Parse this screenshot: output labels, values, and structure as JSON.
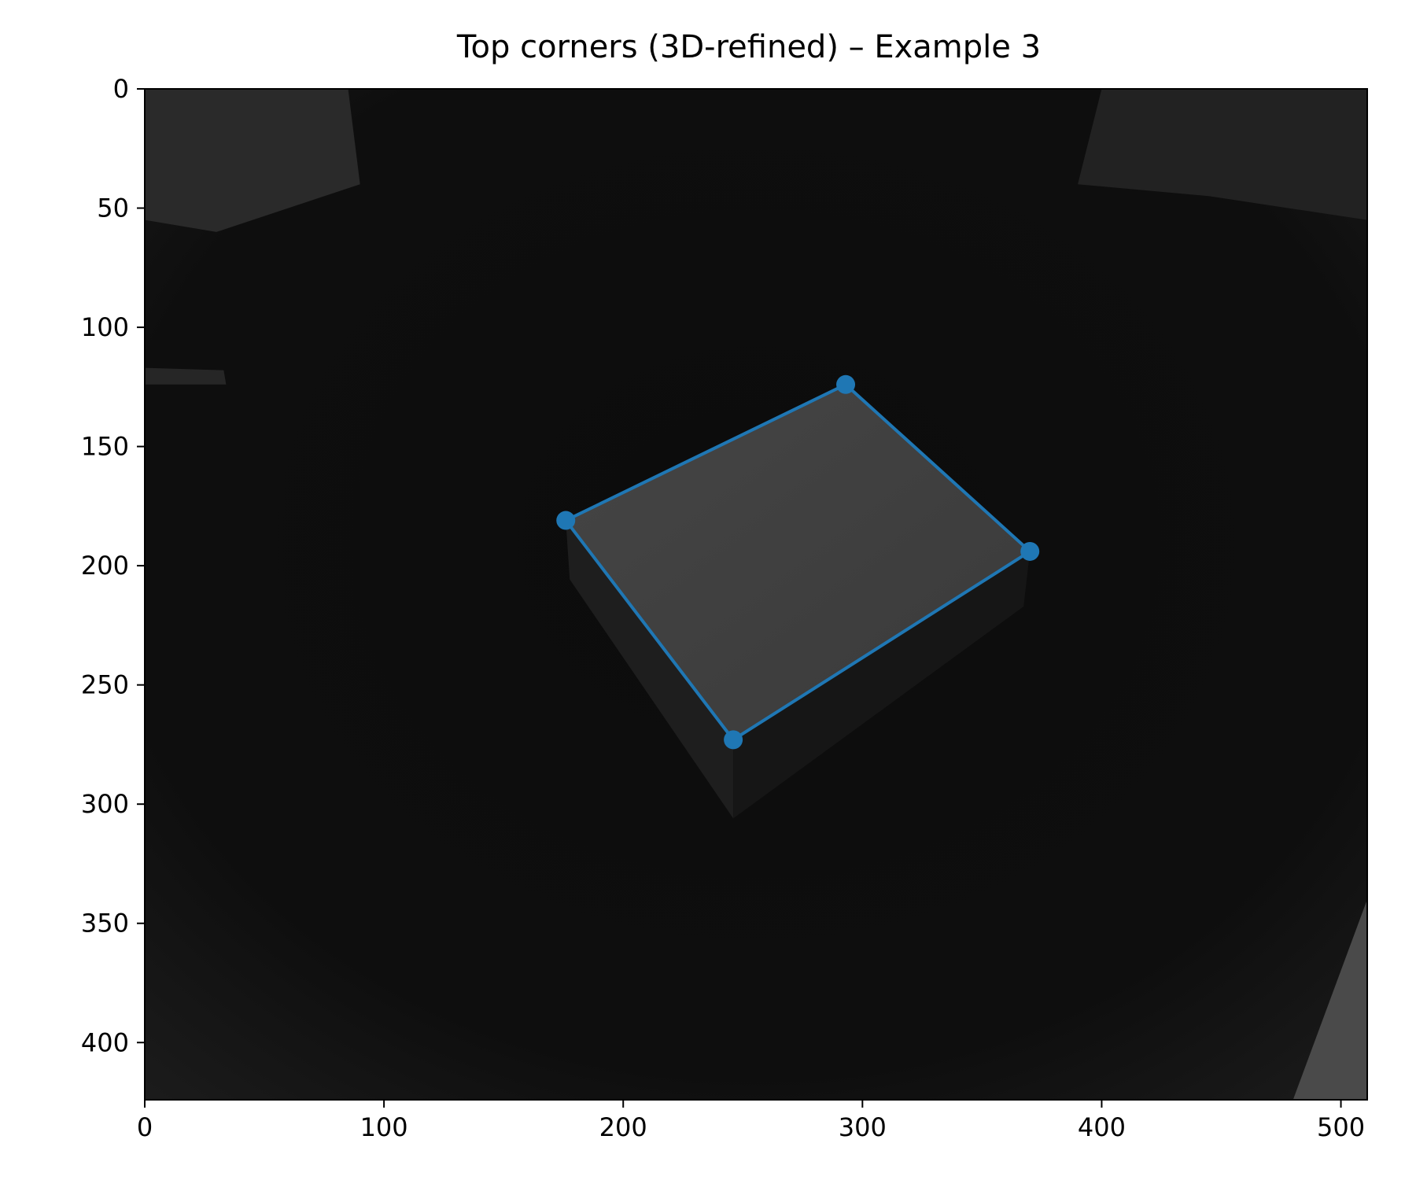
{
  "chart_data": {
    "type": "scatter",
    "title": "Top corners (3D-refined) – Example 3",
    "xlabel": "",
    "ylabel": "",
    "xlim": [
      0,
      511
    ],
    "ylim": [
      424,
      0
    ],
    "x_ticks": [
      0,
      100,
      200,
      300,
      400,
      500
    ],
    "y_ticks": [
      0,
      50,
      100,
      150,
      200,
      250,
      300,
      350,
      400
    ],
    "grid": false,
    "background": "grayscale depth/IR image of a box on a dark floor",
    "series": [
      {
        "closed": true,
        "color": "#1f77b4",
        "points": [
          {
            "x": 176,
            "y": 181
          },
          {
            "x": 293,
            "y": 124
          },
          {
            "x": 370,
            "y": 194
          },
          {
            "x": 246,
            "y": 273
          }
        ]
      }
    ]
  },
  "colors": {
    "series": "#1f77b4",
    "axes": "#000000",
    "background": "#ffffff"
  }
}
